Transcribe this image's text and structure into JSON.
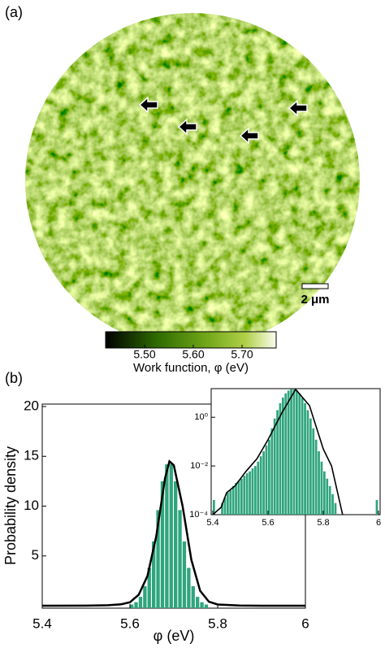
{
  "panel_a": {
    "label": "(a)",
    "scale_bar": "2 μm",
    "colorbar": {
      "lim": [
        5.42,
        5.77
      ],
      "ticks": [
        {
          "value": 5.5,
          "label": "5.50"
        },
        {
          "value": 5.6,
          "label": "5.60"
        },
        {
          "value": 5.7,
          "label": "5.70"
        }
      ],
      "label": "Work function, φ (eV)"
    }
  },
  "panel_b": {
    "label": "(b)"
  },
  "chart_data": [
    {
      "type": "histogram",
      "color": "#2fa57d",
      "bins": [
        5.6,
        5.61,
        5.62,
        5.63,
        5.64,
        5.65,
        5.66,
        5.67,
        5.68,
        5.69,
        5.7,
        5.71,
        5.72,
        5.73,
        5.74,
        5.75,
        5.76,
        5.77,
        5.78
      ],
      "values": [
        0.12,
        0.35,
        0.89,
        1.96,
        3.8,
        6.45,
        9.6,
        12.5,
        14.2,
        14.2,
        12.5,
        9.6,
        6.45,
        3.8,
        1.96,
        0.89,
        0.35,
        0.12
      ],
      "series": [
        {
          "color": "#000000",
          "x": [
            5.4,
            5.5,
            5.55,
            5.58,
            5.6,
            5.62,
            5.64,
            5.66,
            5.68,
            5.69,
            5.7,
            5.72,
            5.74,
            5.76,
            5.78,
            5.8,
            5.85,
            5.9,
            6.0
          ],
          "values": [
            0,
            0.01,
            0.05,
            0.15,
            0.35,
            1.1,
            3.0,
            7.0,
            12.8,
            14.5,
            14.1,
            10.0,
            4.6,
            1.5,
            0.4,
            0.12,
            0.02,
            0,
            0
          ]
        }
      ],
      "xlim": [
        5.4,
        6
      ],
      "xticks": [
        5.4,
        5.6,
        5.8,
        6
      ],
      "ylim": [
        0,
        20
      ],
      "yticks": [
        5,
        10,
        15,
        20
      ],
      "xlabel": "φ (eV)",
      "ylabel": "Probability density"
    },
    {
      "type": "histogram",
      "color": "#2fa57d",
      "log_y": true,
      "bins": [
        5.4,
        5.41,
        5.42,
        5.43,
        5.44,
        5.45,
        5.46,
        5.47,
        5.48,
        5.49,
        5.5,
        5.51,
        5.52,
        5.53,
        5.54,
        5.55,
        5.56,
        5.57,
        5.58,
        5.59,
        5.6,
        5.61,
        5.62,
        5.63,
        5.64,
        5.65,
        5.66,
        5.67,
        5.68,
        5.69,
        5.7,
        5.71,
        5.72,
        5.73,
        5.74,
        5.75,
        5.76,
        5.77,
        5.78,
        5.79,
        5.8,
        5.81,
        5.82,
        5.83,
        5.84,
        5.85,
        5.86,
        5.87,
        5.88,
        5.89,
        5.9,
        5.91,
        5.92,
        5.93,
        5.94,
        5.95,
        5.96,
        5.97,
        5.98,
        5.99,
        6.0
      ],
      "values": [
        0.0004,
        0,
        0,
        0.0003,
        0.0005,
        0.0008,
        0.001,
        0.0015,
        0.002,
        0.0025,
        0.003,
        0.004,
        0.005,
        0.006,
        0.008,
        0.01,
        0.015,
        0.025,
        0.04,
        0.07,
        0.12,
        0.35,
        0.89,
        1.96,
        3.8,
        6.45,
        9.6,
        12.5,
        14.2,
        14.2,
        12.5,
        9.6,
        6.45,
        3.8,
        1.96,
        0.89,
        0.35,
        0.12,
        0.04,
        0.015,
        0.006,
        0.003,
        0.0015,
        0.0007,
        0.0003,
        0,
        0,
        0,
        0,
        0,
        0,
        0,
        0,
        0,
        0,
        0,
        0,
        0,
        0,
        0.0004
      ],
      "series": [
        {
          "color": "#000000",
          "x": [
            5.4,
            5.43,
            5.45,
            5.48,
            5.52,
            5.56,
            5.6,
            5.65,
            5.7,
            5.75,
            5.8,
            5.83,
            5.85,
            5.87
          ],
          "values": [
            0.0001,
            0.0002,
            0.0008,
            0.0015,
            0.006,
            0.02,
            0.12,
            1.5,
            14,
            3,
            0.05,
            0.01,
            0.001,
            0.0001
          ]
        }
      ],
      "xlim": [
        5.4,
        6
      ],
      "xticks": [
        5.4,
        5.6,
        5.8,
        6
      ],
      "ylim": [
        0.0001,
        15
      ],
      "yticks": [
        {
          "value": 0.0001,
          "label": "10⁻⁴"
        },
        {
          "value": 0.01,
          "label": "10⁻²"
        },
        {
          "value": 1,
          "label": "10⁰"
        }
      ]
    }
  ]
}
